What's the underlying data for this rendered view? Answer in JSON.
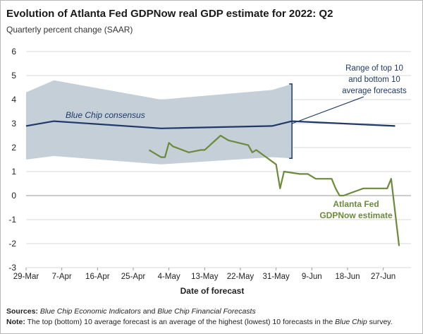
{
  "chart_data": {
    "type": "line",
    "title": "Evolution of Atlanta Fed GDPNow real GDP estimate for 2022: Q2",
    "ylabel": "Quarterly percent change (SAAR)",
    "xlabel": "Date of forecast",
    "ylim": [
      -3,
      6
    ],
    "yticks": [
      "6",
      "5",
      "4",
      "3",
      "2",
      "1",
      "0",
      "-1",
      "-2",
      "-3"
    ],
    "x_range": [
      "2022-03-29",
      "2022-07-04"
    ],
    "x_ticks": [
      {
        "date": "2022-03-29",
        "label": "29-Mar"
      },
      {
        "date": "2022-04-07",
        "label": "7-Apr"
      },
      {
        "date": "2022-04-16",
        "label": "16-Apr"
      },
      {
        "date": "2022-04-25",
        "label": "25-Apr"
      },
      {
        "date": "2022-05-04",
        "label": "4-May"
      },
      {
        "date": "2022-05-13",
        "label": "13-May"
      },
      {
        "date": "2022-05-22",
        "label": "22-May"
      },
      {
        "date": "2022-05-31",
        "label": "31-May"
      },
      {
        "date": "2022-06-09",
        "label": "9-Jun"
      },
      {
        "date": "2022-06-18",
        "label": "18-Jun"
      },
      {
        "date": "2022-06-27",
        "label": "27-Jun"
      }
    ],
    "range_band": {
      "dates": [
        "2022-03-29",
        "2022-04-05",
        "2022-05-02",
        "2022-05-30",
        "2022-06-04"
      ],
      "top": [
        4.3,
        4.8,
        4.0,
        4.4,
        4.65
      ],
      "bottom": [
        1.5,
        1.65,
        1.3,
        1.6,
        1.55
      ]
    },
    "series": [
      {
        "name": "Blue Chip consensus",
        "color": "#1f3a68",
        "dates": [
          "2022-03-29",
          "2022-04-05",
          "2022-05-02",
          "2022-05-30",
          "2022-06-04",
          "2022-06-30"
        ],
        "values": [
          2.9,
          3.1,
          2.8,
          2.9,
          3.1,
          2.9
        ]
      },
      {
        "name": "Atlanta Fed GDPNow estimate",
        "color": "#6b8a3a",
        "dates": [
          "2022-04-29",
          "2022-05-02",
          "2022-05-03",
          "2022-05-04",
          "2022-05-05",
          "2022-05-09",
          "2022-05-12",
          "2022-05-13",
          "2022-05-17",
          "2022-05-19",
          "2022-05-24",
          "2022-05-25",
          "2022-05-26",
          "2022-05-31",
          "2022-06-01",
          "2022-06-02",
          "2022-06-06",
          "2022-06-08",
          "2022-06-10",
          "2022-06-14",
          "2022-06-15",
          "2022-06-16",
          "2022-06-17",
          "2022-06-22",
          "2022-06-24",
          "2022-06-28",
          "2022-06-29",
          "2022-07-01"
        ],
        "values": [
          1.9,
          1.6,
          1.6,
          2.2,
          2.05,
          1.8,
          1.9,
          1.9,
          2.5,
          2.3,
          2.1,
          1.8,
          1.9,
          1.3,
          0.3,
          1.0,
          0.9,
          0.9,
          0.7,
          0.7,
          0.3,
          0.0,
          0.0,
          0.3,
          0.3,
          0.3,
          0.7,
          -2.1
        ]
      }
    ],
    "annotations": {
      "range_line1": "Range of top 10",
      "range_line2": "and bottom 10",
      "range_line3": "average forecasts",
      "bluechip_label": "Blue Chip consensus",
      "gdpnow_line1": "Atlanta Fed",
      "gdpnow_line2": "GDPNow estimate"
    },
    "grid": "horizontal",
    "band_color": "#c5cfd8",
    "bracket_color": "#1f3a68"
  },
  "notes": {
    "sources_label": "Sources:",
    "sources_part1": "Blue Chip Economic Indicators",
    "sources_and": "and",
    "sources_part2": "Blue Chip Financial Forecasts",
    "note_label": "Note:",
    "note_text1": "The top (bottom) 10 average forecast is an average of the highest (lowest) 10 forecasts in the",
    "note_italic": "Blue Chip",
    "note_text2": "survey."
  }
}
